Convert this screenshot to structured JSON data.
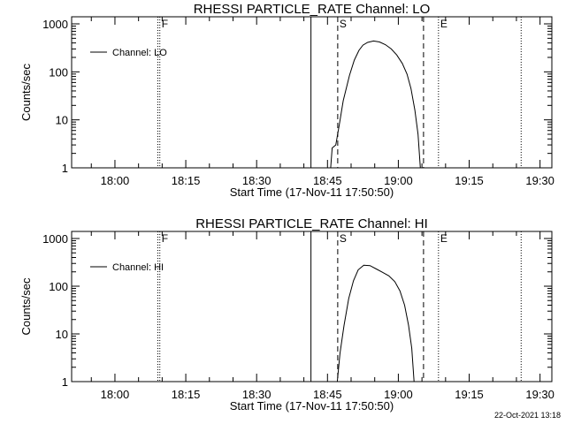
{
  "chart_data": [
    {
      "type": "line",
      "title": "RHESSI PARTICLE_RATE Channel: LO",
      "xlabel": "Start Time (17-Nov-11 17:50:50)",
      "ylabel": "Counts/sec",
      "y_scale": "log",
      "ylim": [
        1,
        1000
      ],
      "xlim": [
        "17:50:50",
        "19:32:30"
      ],
      "x_ticks": [
        "18:00",
        "18:15",
        "18:30",
        "18:45",
        "19:00",
        "19:15",
        "19:30"
      ],
      "y_ticks": [
        "1",
        "10",
        "100",
        "1000"
      ],
      "legend": {
        "placement": "top-left",
        "label": "Channel: LO"
      },
      "grid": false,
      "markers": [
        {
          "label": "F",
          "time": "18:09:30",
          "style": "dotted"
        },
        {
          "label": "",
          "time": "18:09:05",
          "style": "dotted"
        },
        {
          "label": "",
          "time": "18:41:30",
          "style": "solid"
        },
        {
          "label": "S",
          "time": "18:47:10",
          "style": "dashed"
        },
        {
          "label": "",
          "time": "19:05:20",
          "style": "dashed"
        },
        {
          "label": "E",
          "time": "19:08:30",
          "style": "dotted"
        },
        {
          "label": "",
          "time": "19:26:00",
          "style": "dotted"
        }
      ],
      "series": [
        {
          "name": "Channel: LO",
          "points": [
            [
              "18:45:40",
              1
            ],
            [
              "18:46:00",
              2.6
            ],
            [
              "18:46:45",
              3
            ],
            [
              "18:47:30",
              8
            ],
            [
              "18:48:20",
              25
            ],
            [
              "18:49:40",
              85
            ],
            [
              "18:50:40",
              175
            ],
            [
              "18:51:40",
              280
            ],
            [
              "18:52:30",
              360
            ],
            [
              "18:53:30",
              410
            ],
            [
              "18:54:45",
              440
            ],
            [
              "18:56:00",
              420
            ],
            [
              "18:57:15",
              370
            ],
            [
              "18:58:30",
              300
            ],
            [
              "18:59:40",
              225
            ],
            [
              "19:00:50",
              150
            ],
            [
              "19:01:50",
              90
            ],
            [
              "19:02:40",
              45
            ],
            [
              "19:03:30",
              16
            ],
            [
              "19:04:10",
              5
            ],
            [
              "19:04:40",
              1
            ]
          ]
        }
      ]
    },
    {
      "type": "line",
      "title": "RHESSI PARTICLE_RATE Channel: HI",
      "xlabel": "Start Time (17-Nov-11 17:50:50)",
      "ylabel": "Counts/sec",
      "y_scale": "log",
      "ylim": [
        1,
        1000
      ],
      "xlim": [
        "17:50:50",
        "19:32:30"
      ],
      "x_ticks": [
        "18:00",
        "18:15",
        "18:30",
        "18:45",
        "19:00",
        "19:15",
        "19:30"
      ],
      "y_ticks": [
        "1",
        "10",
        "100",
        "1000"
      ],
      "legend": {
        "placement": "top-left",
        "label": "Channel: HI"
      },
      "grid": false,
      "markers": [
        {
          "label": "F",
          "time": "18:09:30",
          "style": "dotted"
        },
        {
          "label": "",
          "time": "18:09:05",
          "style": "dotted"
        },
        {
          "label": "",
          "time": "18:41:30",
          "style": "solid"
        },
        {
          "label": "S",
          "time": "18:47:10",
          "style": "dashed"
        },
        {
          "label": "",
          "time": "19:05:20",
          "style": "dashed"
        },
        {
          "label": "E",
          "time": "19:08:30",
          "style": "dotted"
        },
        {
          "label": "",
          "time": "19:26:00",
          "style": "dotted"
        }
      ],
      "series": [
        {
          "name": "Channel: HI",
          "points": [
            [
              "18:47:05",
              1
            ],
            [
              "18:47:40",
              4
            ],
            [
              "18:48:30",
              15
            ],
            [
              "18:49:30",
              55
            ],
            [
              "18:50:30",
              130
            ],
            [
              "18:51:30",
              220
            ],
            [
              "18:52:40",
              275
            ],
            [
              "18:54:00",
              270
            ],
            [
              "18:55:20",
              230
            ],
            [
              "18:56:40",
              195
            ],
            [
              "18:58:00",
              165
            ],
            [
              "18:59:15",
              125
            ],
            [
              "19:00:20",
              80
            ],
            [
              "19:01:20",
              40
            ],
            [
              "19:02:10",
              15
            ],
            [
              "19:02:50",
              5
            ],
            [
              "19:03:20",
              1
            ]
          ]
        }
      ]
    }
  ],
  "footer": {
    "timestamp": "22-Oct-2021 13:18"
  }
}
